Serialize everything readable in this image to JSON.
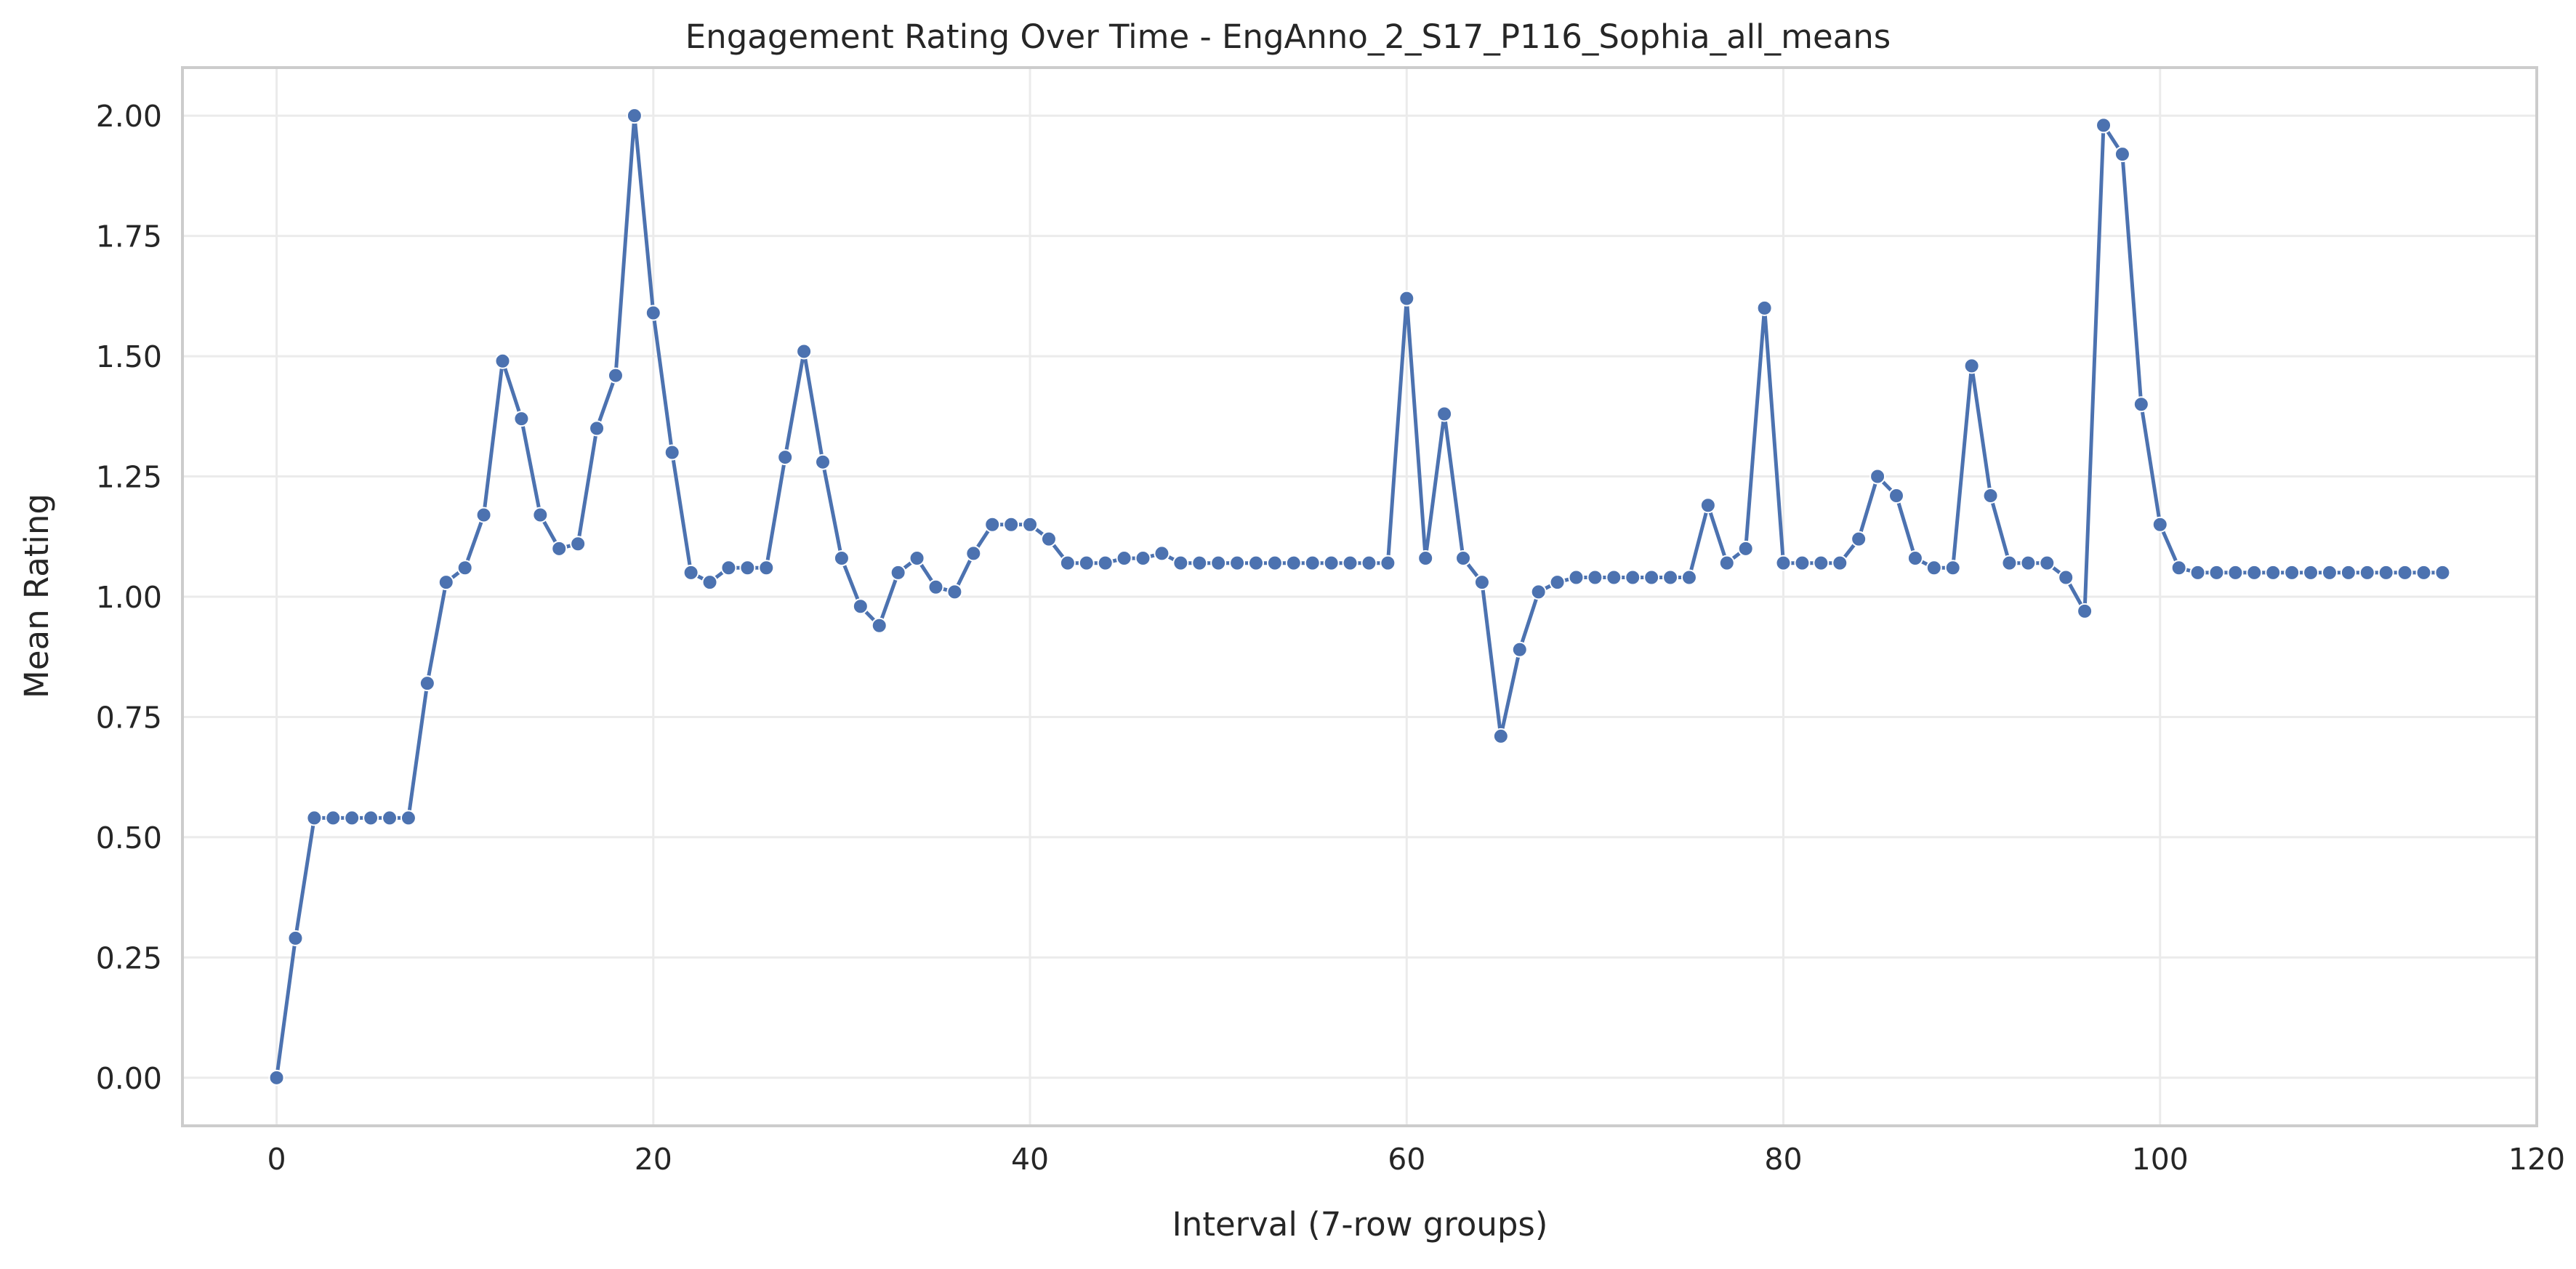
{
  "chart_data": {
    "type": "line",
    "title": "Engagement Rating Over Time - EngAnno_2_S17_P116_Sophia_all_means",
    "xlabel": "Interval (7-row groups)",
    "ylabel": "Mean Rating",
    "xlim": [
      -5,
      120
    ],
    "ylim": [
      -0.1,
      2.1
    ],
    "x_ticks": [
      0,
      20,
      40,
      60,
      80,
      100,
      120
    ],
    "x_tick_labels": [
      "0",
      "20",
      "40",
      "60",
      "80",
      "100",
      "120"
    ],
    "y_ticks": [
      0,
      0.25,
      0.5,
      0.75,
      1.0,
      1.25,
      1.5,
      1.75,
      2.0
    ],
    "y_tick_labels": [
      "0.00",
      "0.25",
      "0.50",
      "0.75",
      "1.00",
      "1.25",
      "1.50",
      "1.75",
      "2.00"
    ],
    "grid": true,
    "markers": true,
    "line_color": "#4c72b0",
    "series": [
      {
        "x": [
          0,
          1,
          2,
          3,
          4,
          5,
          6,
          7,
          8,
          9,
          10,
          11,
          12,
          13,
          14,
          15,
          16,
          17,
          18,
          19,
          20,
          21,
          22,
          23,
          24,
          25,
          26,
          27,
          28,
          29,
          30,
          31,
          32,
          33,
          34,
          35,
          36,
          37,
          38,
          39,
          40,
          41,
          42,
          43,
          44,
          45,
          46,
          47,
          48,
          49,
          50,
          51,
          52,
          53,
          54,
          55,
          56,
          57,
          58,
          59,
          60,
          61,
          62,
          63,
          64,
          65,
          66,
          67,
          68,
          69,
          70,
          71,
          72,
          73,
          74,
          75,
          76,
          77,
          78,
          79,
          80,
          81,
          82,
          83,
          84,
          85,
          86,
          87,
          88,
          89,
          90,
          91,
          92,
          93,
          94,
          95,
          96,
          97,
          98,
          99,
          100,
          101,
          102,
          103,
          104,
          105,
          106,
          107,
          108,
          109,
          110,
          111,
          112,
          113,
          114,
          115
        ],
        "values": [
          0.0,
          0.29,
          0.54,
          0.54,
          0.54,
          0.54,
          0.54,
          0.54,
          0.82,
          1.03,
          1.06,
          1.17,
          1.49,
          1.37,
          1.17,
          1.1,
          1.11,
          1.35,
          1.46,
          2.0,
          1.59,
          1.3,
          1.05,
          1.03,
          1.06,
          1.06,
          1.06,
          1.29,
          1.51,
          1.28,
          1.08,
          0.98,
          0.94,
          1.05,
          1.08,
          1.02,
          1.01,
          1.09,
          1.15,
          1.15,
          1.15,
          1.12,
          1.07,
          1.07,
          1.07,
          1.08,
          1.08,
          1.09,
          1.07,
          1.07,
          1.07,
          1.07,
          1.07,
          1.07,
          1.07,
          1.07,
          1.07,
          1.07,
          1.07,
          1.07,
          1.62,
          1.08,
          1.38,
          1.08,
          1.03,
          0.71,
          0.89,
          1.01,
          1.03,
          1.04,
          1.04,
          1.04,
          1.04,
          1.04,
          1.04,
          1.04,
          1.19,
          1.07,
          1.1,
          1.6,
          1.07,
          1.07,
          1.07,
          1.07,
          1.12,
          1.25,
          1.21,
          1.08,
          1.06,
          1.06,
          1.48,
          1.21,
          1.07,
          1.07,
          1.07,
          1.04,
          0.97,
          1.98,
          1.92,
          1.4,
          1.15,
          1.06,
          1.05,
          1.05,
          1.05,
          1.05,
          1.05,
          1.05,
          1.05,
          1.05,
          1.05,
          1.05,
          1.05,
          1.05,
          1.05,
          1.05
        ]
      }
    ]
  }
}
